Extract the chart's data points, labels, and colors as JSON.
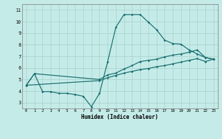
{
  "xlabel": "Humidex (Indice chaleur)",
  "xlim": [
    -0.5,
    23.5
  ],
  "ylim": [
    2.5,
    11.5
  ],
  "yticks": [
    3,
    4,
    5,
    6,
    7,
    8,
    9,
    10,
    11
  ],
  "xticks": [
    0,
    1,
    2,
    3,
    4,
    5,
    6,
    7,
    8,
    9,
    10,
    11,
    12,
    13,
    14,
    15,
    16,
    17,
    18,
    19,
    20,
    21,
    22,
    23
  ],
  "bg_color": "#c5ebe8",
  "grid_color": "#aad4d0",
  "line_color": "#1a7070",
  "line1_x": [
    0,
    1,
    2,
    3,
    4,
    5,
    6,
    7,
    8,
    9,
    10,
    11,
    12,
    13,
    14,
    15,
    16,
    17,
    18,
    19,
    20,
    21,
    22,
    23
  ],
  "line1_y": [
    4.5,
    5.5,
    3.95,
    3.95,
    3.8,
    3.8,
    3.7,
    3.55,
    2.65,
    3.8,
    6.55,
    9.5,
    10.6,
    10.6,
    10.6,
    9.95,
    9.3,
    8.4,
    8.1,
    8.05,
    7.55,
    7.2,
    6.9,
    6.75
  ],
  "line2_x": [
    0,
    1,
    9,
    10,
    11,
    12,
    13,
    14,
    15,
    16,
    17,
    18,
    19,
    20,
    21,
    22,
    23
  ],
  "line2_y": [
    4.5,
    5.5,
    5.0,
    5.4,
    5.55,
    5.9,
    6.2,
    6.55,
    6.65,
    6.75,
    6.95,
    7.1,
    7.2,
    7.35,
    7.55,
    6.9,
    6.75
  ],
  "line3_x": [
    0,
    9,
    10,
    11,
    12,
    13,
    14,
    15,
    16,
    17,
    18,
    19,
    20,
    21,
    22,
    23
  ],
  "line3_y": [
    4.5,
    4.9,
    5.15,
    5.35,
    5.55,
    5.7,
    5.85,
    5.95,
    6.1,
    6.2,
    6.35,
    6.5,
    6.65,
    6.8,
    6.55,
    6.75
  ]
}
